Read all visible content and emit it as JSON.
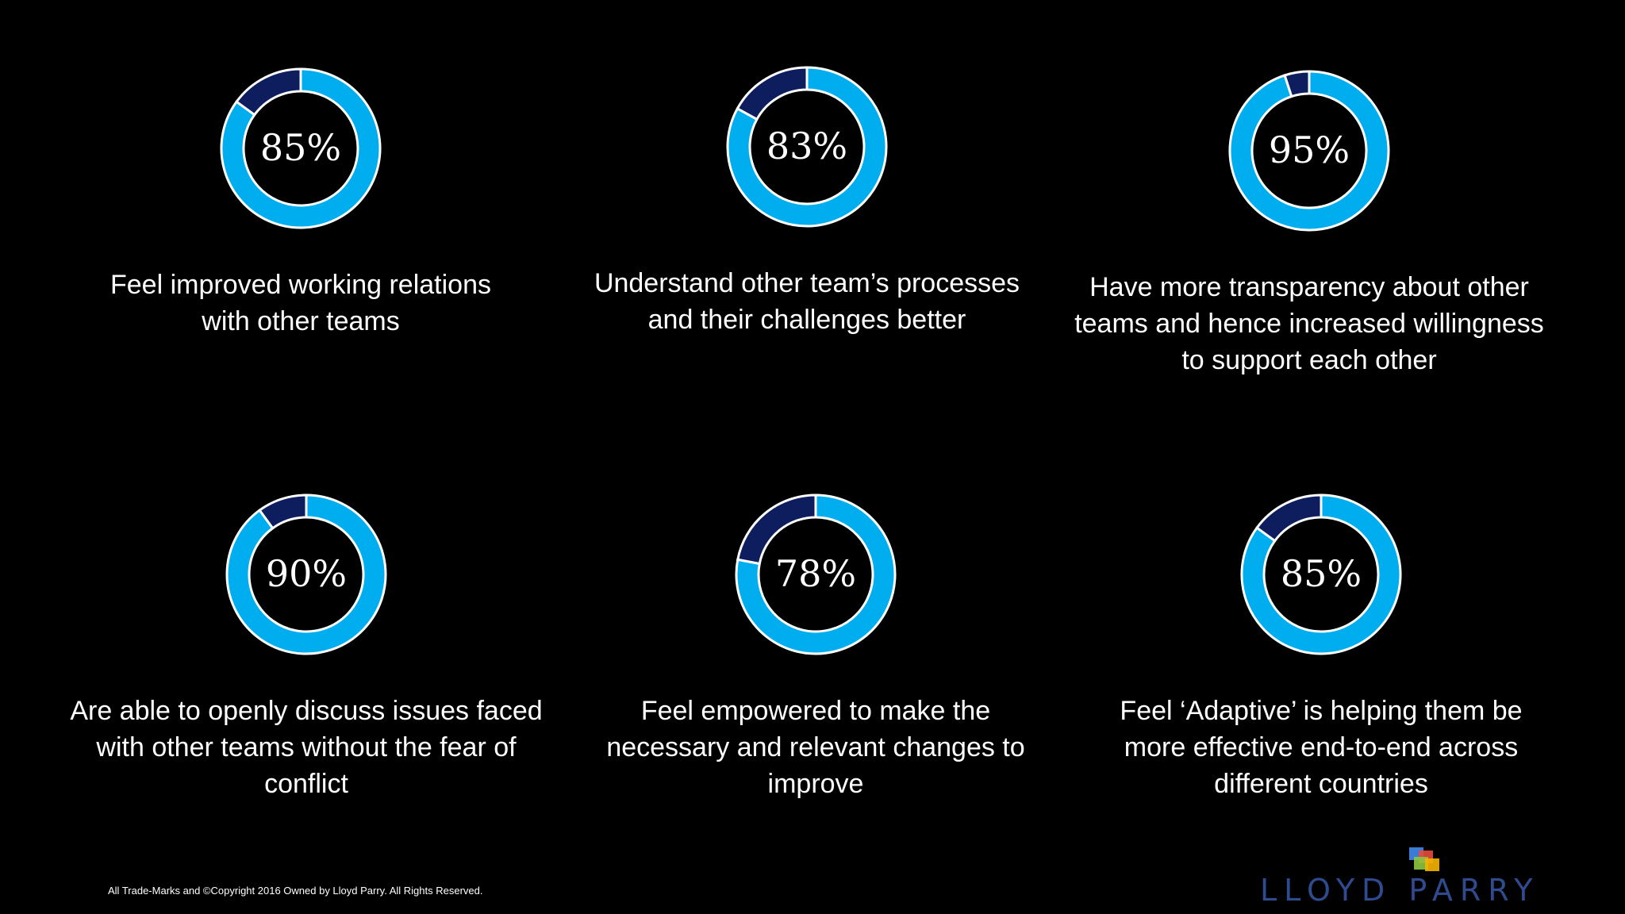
{
  "chart_data": {
    "type": "pie",
    "colors": {
      "filled": "#00aeef",
      "remainder": "#0d1d5e",
      "outline": "#ffffff"
    },
    "items": [
      {
        "label": "85%",
        "value": 85,
        "caption": "Feel improved working relations\nwith other teams"
      },
      {
        "label": "83%",
        "value": 83,
        "caption": "Understand other team’s processes\nand their challenges better"
      },
      {
        "label": "95%",
        "value": 95,
        "caption": "Have more transparency about other\nteams and hence increased willingness\nto support each other"
      },
      {
        "label": "90%",
        "value": 90,
        "caption": "Are able to openly discuss issues faced\nwith other teams without the fear of\nconflict"
      },
      {
        "label": "78%",
        "value": 78,
        "caption": "Feel empowered to make the\nnecessary and relevant changes to\nimprove"
      },
      {
        "label": "85%",
        "value": 85,
        "caption": "Feel ‘Adaptive’ is helping them be\nmore effective end-to-end across\ndifferent countries"
      }
    ]
  },
  "footer": {
    "copyright": "All Trade-Marks and ©Copyright 2016 Owned by Lloyd Parry. All Rights Reserved.",
    "brand": "LLOYD PARRY"
  }
}
